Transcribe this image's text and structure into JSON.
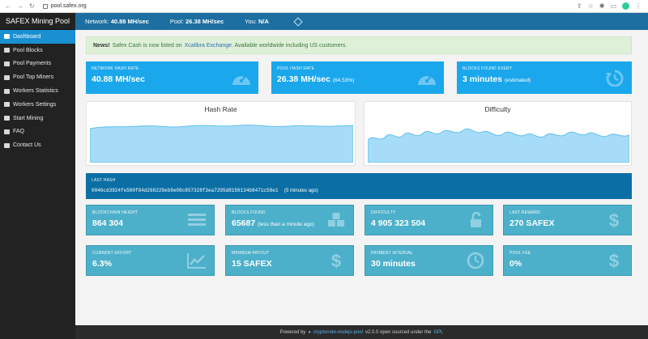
{
  "browser": {
    "url": "pool.safex.org"
  },
  "sidebar": {
    "brand": "SAFEX Mining Pool",
    "items": [
      {
        "label": "Dashboard",
        "icon": "dashboard-icon"
      },
      {
        "label": "Pool Blocks",
        "icon": "cubes-icon"
      },
      {
        "label": "Pool Payments",
        "icon": "payments-icon"
      },
      {
        "label": "Pool Top Miners",
        "icon": "trophy-icon"
      },
      {
        "label": "Workers Statistics",
        "icon": "users-icon"
      },
      {
        "label": "Workers Settings",
        "icon": "gears-icon"
      },
      {
        "label": "Start Mining",
        "icon": "rocket-icon"
      },
      {
        "label": "FAQ",
        "icon": "comments-icon"
      },
      {
        "label": "Contact Us",
        "icon": "envelope-icon"
      }
    ]
  },
  "topbar": {
    "network_label": "Network:",
    "network_value": "40.88 MH/sec",
    "pool_label": "Pool:",
    "pool_value": "26.38 MH/sec",
    "you_label": "You:",
    "you_value": "N/A"
  },
  "notice": {
    "prefix": "News!",
    "text1": "Safex Cash is now listed on",
    "link": "Xcalibra Exchange",
    "text2": ". Available worldwide including US customers."
  },
  "cards_top": [
    {
      "label": "Network Hash Rate",
      "value": "40.88 MH/sec",
      "extra": ""
    },
    {
      "label": "Pool Hash Rate",
      "value": "26.38 MH/sec",
      "extra": "(64.53%)"
    },
    {
      "label": "Blocks Found Every",
      "value": "3 minutes",
      "extra": "(estimated)"
    }
  ],
  "charts": {
    "hashrate_title": "Hash Rate",
    "difficulty_title": "Difficulty"
  },
  "last_hash": {
    "label": "Last Hash",
    "value": "0046cd3924fe500f84d268229eb9e08c857328f3ea7295d8156134b8471c58e1",
    "ago": "(5 minutes ago)"
  },
  "stats_row1": [
    {
      "label": "Blockchain Height",
      "value": "864 304",
      "extra": ""
    },
    {
      "label": "Blocks Found",
      "value": "65687",
      "extra": "(less than a minute ago)"
    },
    {
      "label": "Difficulty",
      "value": "4 905 323 504",
      "extra": ""
    },
    {
      "label": "Last Reward",
      "value": "270 SAFEX",
      "extra": ""
    }
  ],
  "stats_row2": [
    {
      "label": "Current Effort",
      "value": "6.3%",
      "extra": ""
    },
    {
      "label": "Minimum Payout",
      "value": "15 SAFEX",
      "extra": ""
    },
    {
      "label": "Payment Interval",
      "value": "30 minutes",
      "extra": ""
    },
    {
      "label": "Pool Fee",
      "value": "0%",
      "extra": ""
    }
  ],
  "footer": {
    "text1": "Powered by",
    "link": "cryptonote-nodejs-pool",
    "text2": "v2.0.0 open sourced under the",
    "license": "GPL"
  },
  "colors": {
    "accent": "#1aa7ec",
    "topbar": "#1c6fa0",
    "teal_card": "#4db0ca",
    "dark_card": "#0b6ea5",
    "chart_fill": "#a6dcf7",
    "chart_line": "#5fbfee"
  }
}
